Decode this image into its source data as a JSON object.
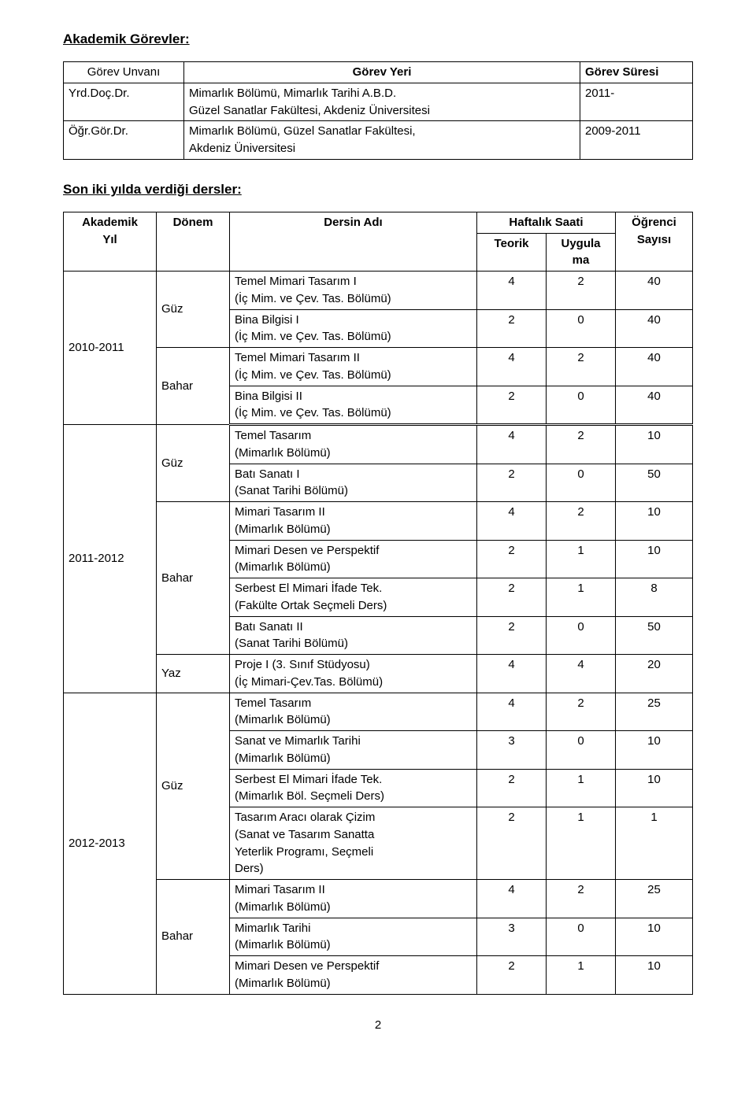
{
  "page_number": "2",
  "section1_title": "Akademik Görevler:",
  "positions_headers": {
    "title": "Görev Unvanı",
    "place": "Görev Yeri",
    "period": "Görev Süresi"
  },
  "positions": [
    {
      "title": "Yrd.Doç.Dr.",
      "place": "Mimarlık Bölümü, Mimarlık Tarihi A.B.D.\nGüzel Sanatlar Fakültesi, Akdeniz Üniversitesi",
      "period": "2011-"
    },
    {
      "title": "Öğr.Gör.Dr.",
      "place": "Mimarlık Bölümü, Güzel Sanatlar Fakültesi,\nAkdeniz Üniversitesi",
      "period": "2009-2011"
    }
  ],
  "section2_title": "Son iki yılda verdiği dersler:",
  "courses_headers": {
    "year": "Akademik\nYıl",
    "term": "Dönem",
    "course": "Dersin Adı",
    "weekly": "Haftalık Saati",
    "theory": "Teorik",
    "applied": "Uygula\nma",
    "students": "Öğrenci\nSayısı"
  },
  "blocks": [
    {
      "year": "2010-2011",
      "thick_after": true,
      "terms": [
        {
          "term": "Güz",
          "rows": [
            {
              "course": "Temel Mimari Tasarım I\n(İç Mim. ve Çev. Tas. Bölümü)",
              "t": "4",
              "u": "2",
              "s": "40"
            },
            {
              "course": "Bina Bilgisi I\n(İç Mim. ve Çev. Tas. Bölümü)",
              "t": "2",
              "u": "0",
              "s": "40"
            }
          ]
        },
        {
          "term": "Bahar",
          "rows": [
            {
              "course": "Temel Mimari Tasarım II\n(İç Mim. ve Çev. Tas. Bölümü)",
              "t": "4",
              "u": "2",
              "s": "40"
            },
            {
              "course": "Bina Bilgisi II\n(İç Mim. ve Çev. Tas. Bölümü)",
              "t": "2",
              "u": "0",
              "s": "40"
            }
          ]
        }
      ]
    },
    {
      "year": "2011-2012",
      "terms": [
        {
          "term": "Güz",
          "rows": [
            {
              "course": "Temel Tasarım\n(Mimarlık Bölümü)",
              "t": "4",
              "u": "2",
              "s": "10"
            },
            {
              "course": "Batı Sanatı I\n(Sanat Tarihi Bölümü)",
              "t": "2",
              "u": "0",
              "s": "50"
            }
          ]
        },
        {
          "term": "Bahar",
          "rows": [
            {
              "course": "Mimari Tasarım II\n(Mimarlık Bölümü)",
              "t": "4",
              "u": "2",
              "s": "10"
            },
            {
              "course": "Mimari Desen ve Perspektif\n(Mimarlık Bölümü)",
              "t": "2",
              "u": "1",
              "s": "10"
            },
            {
              "course": "Serbest El Mimari İfade Tek.\n(Fakülte Ortak Seçmeli Ders)",
              "t": "2",
              "u": "1",
              "s": "8"
            },
            {
              "course": "Batı Sanatı II\n(Sanat Tarihi Bölümü)",
              "t": "2",
              "u": "0",
              "s": "50"
            }
          ]
        },
        {
          "term": "Yaz",
          "rows": [
            {
              "course": "Proje I  (3. Sınıf Stüdyosu)\n(İç Mimari-Çev.Tas. Bölümü)",
              "t": "4",
              "u": "4",
              "s": "20"
            }
          ]
        }
      ]
    },
    {
      "year": "2012-2013",
      "terms": [
        {
          "term": "Güz",
          "rows": [
            {
              "course": "Temel Tasarım\n(Mimarlık Bölümü)",
              "t": "4",
              "u": "2",
              "s": "25"
            },
            {
              "course": "Sanat ve Mimarlık Tarihi\n(Mimarlık Bölümü)",
              "t": "3",
              "u": "0",
              "s": "10"
            },
            {
              "course": "Serbest El Mimari İfade Tek.\n(Mimarlık Böl. Seçmeli Ders)",
              "t": "2",
              "u": "1",
              "s": "10"
            },
            {
              "course": "Tasarım Aracı olarak Çizim\n(Sanat ve Tasarım Sanatta\nYeterlik Programı, Seçmeli\nDers)",
              "t": "2",
              "u": "1",
              "s": "1"
            }
          ]
        },
        {
          "term": "Bahar",
          "rows": [
            {
              "course": "Mimari Tasarım II\n(Mimarlık Bölümü)",
              "t": "4",
              "u": "2",
              "s": "25"
            },
            {
              "course": "Mimarlık Tarihi\n(Mimarlık Bölümü)",
              "t": "3",
              "u": "0",
              "s": "10"
            },
            {
              "course": "Mimari Desen ve Perspektif\n(Mimarlık Bölümü)",
              "t": "2",
              "u": "1",
              "s": "10"
            }
          ]
        }
      ]
    }
  ]
}
